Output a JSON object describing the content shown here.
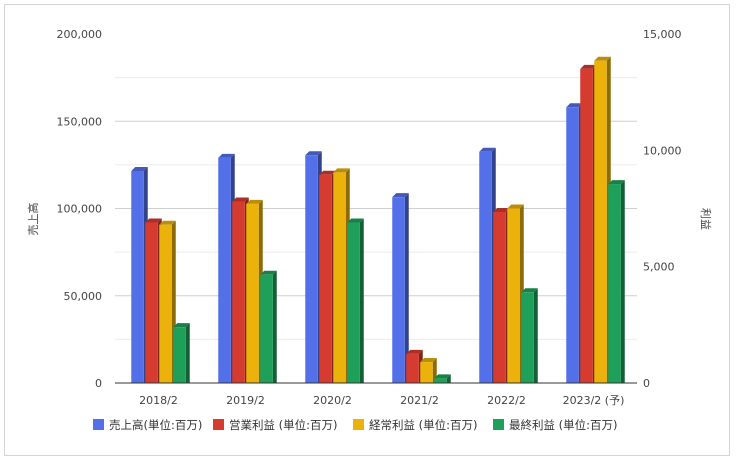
{
  "chart_data": {
    "type": "bar",
    "categories": [
      "2018/2",
      "2019/2",
      "2020/2",
      "2021/2",
      "2022/2",
      "2023/2 (予)"
    ],
    "series": [
      {
        "name": "売上高(単位:百万)",
        "axis": "left",
        "color": "#5470e8",
        "values": [
          121500,
          129000,
          130500,
          106500,
          132500,
          158000
        ]
      },
      {
        "name": "営業利益 (単位:百万)",
        "axis": "right",
        "color": "#d63b30",
        "values": [
          6900,
          7800,
          8950,
          1250,
          7350,
          13500
        ]
      },
      {
        "name": "経常利益 (単位:百万)",
        "axis": "right",
        "color": "#eab20b",
        "values": [
          6800,
          7700,
          9050,
          900,
          7500,
          13850
        ]
      },
      {
        "name": "最終利益 (単位:百万)",
        "axis": "right",
        "color": "#1fa05a",
        "values": [
          2400,
          4650,
          6900,
          200,
          3900,
          8550
        ]
      }
    ],
    "title": "",
    "ylabel_left": "売上高",
    "ylabel_right": "利益",
    "ylim_left": [
      0,
      200000
    ],
    "ylim_right": [
      0,
      15000
    ],
    "yticks_left": [
      "0",
      "50,000",
      "100,000",
      "150,000",
      "200,000"
    ],
    "yticks_right": [
      "0",
      "5,000",
      "10,000",
      "15,000"
    ],
    "grid": true,
    "legend_position": "bottom"
  }
}
